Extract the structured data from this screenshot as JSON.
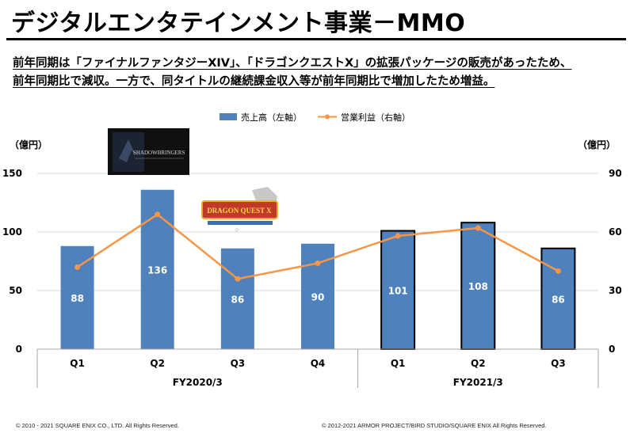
{
  "header": {
    "title": "デジタルエンタテインメント事業－MMO",
    "subtitle_line1": "前年同期は「ファイナルファンタジーXIV」、「ドラゴンクエストX」の拡張パッケージの販売があったため、",
    "subtitle_line2": "前年同期比で減収。一方で、同タイトルの継続課金収入等が前年同期比で増加したため増益。"
  },
  "logos": {
    "ffxiv": "SHADOWBRINGERS",
    "dqx": "DRAGON QUEST X"
  },
  "chart_data": {
    "type": "bar",
    "categories": [
      "Q1",
      "Q2",
      "Q3",
      "Q4",
      "Q1",
      "Q2",
      "Q3"
    ],
    "groups": [
      {
        "label": "FY2020/3",
        "categories": [
          "Q1",
          "Q2",
          "Q3",
          "Q4"
        ]
      },
      {
        "label": "FY2021/3",
        "categories": [
          "Q1",
          "Q2",
          "Q3"
        ]
      }
    ],
    "series": [
      {
        "name": "売上高（左軸）",
        "type": "bar",
        "axis": "left",
        "values": [
          88,
          136,
          86,
          90,
          101,
          108,
          86
        ],
        "color": "#4f81bd"
      },
      {
        "name": "営業利益（右軸）",
        "type": "line",
        "axis": "right",
        "values": [
          42,
          69,
          36,
          44,
          58,
          62,
          40
        ],
        "color": "#f79646"
      }
    ],
    "y_left": {
      "unit": "（億円）",
      "min": 0,
      "max": 150,
      "ticks": [
        0,
        50,
        100,
        150
      ]
    },
    "y_right": {
      "unit": "（億円）",
      "min": 0,
      "max": 90,
      "ticks": [
        0,
        30,
        60,
        90
      ]
    },
    "legend_position": "top-center",
    "grid": "horizontal",
    "highlight_outline_group": "FY2021/3",
    "colors": {
      "bar": "#4f81bd",
      "line": "#f79646",
      "grid": "#d9d9d9",
      "outline": "#000000"
    }
  },
  "footer": {
    "left": "© 2010 - 2021 SQUARE ENIX CO., LTD. All Rights Reserved.",
    "right": "© 2012-2021 ARMOR PROJECT/BIRD STUDIO/SQUARE ENIX All Rights Reserved."
  }
}
